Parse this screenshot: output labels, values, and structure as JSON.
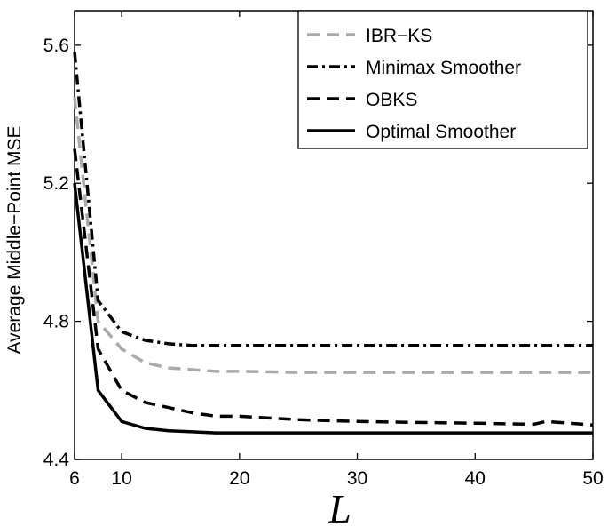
{
  "chart_data": {
    "type": "line",
    "xlabel": "L",
    "ylabel": "Average Middle−Point MSE",
    "xlim": [
      6,
      50
    ],
    "ylim": [
      4.4,
      5.7
    ],
    "xticks": [
      6,
      10,
      20,
      30,
      40,
      50
    ],
    "yticks": [
      4.4,
      4.8,
      5.2,
      5.6
    ],
    "xtick_labels": [
      "6",
      "10",
      "20",
      "30",
      "40",
      "50"
    ],
    "ytick_labels": [
      "4.4",
      "4.8",
      "5.2",
      "5.6"
    ],
    "grid": false,
    "legend_position": "top-right",
    "series": [
      {
        "name": "IBR−KS",
        "color": "#aaaaaa",
        "style": "dashed",
        "x": [
          6,
          8,
          10,
          12,
          14,
          16,
          18,
          20,
          25,
          30,
          35,
          40,
          45,
          50
        ],
        "y": [
          5.45,
          4.8,
          4.72,
          4.68,
          4.665,
          4.66,
          4.655,
          4.655,
          4.652,
          4.652,
          4.652,
          4.652,
          4.652,
          4.652
        ]
      },
      {
        "name": "Minimax Smoother",
        "color": "#000000",
        "style": "dashdot",
        "x": [
          6,
          8,
          10,
          12,
          14,
          16,
          18,
          20,
          25,
          30,
          35,
          40,
          45,
          50
        ],
        "y": [
          5.58,
          4.86,
          4.77,
          4.745,
          4.735,
          4.73,
          4.73,
          4.73,
          4.73,
          4.73,
          4.73,
          4.73,
          4.73,
          4.73
        ]
      },
      {
        "name": "OBKS",
        "color": "#000000",
        "style": "dashed",
        "x": [
          6,
          8,
          10,
          12,
          14,
          16,
          18,
          20,
          25,
          30,
          35,
          40,
          45,
          46,
          50
        ],
        "y": [
          5.3,
          4.72,
          4.6,
          4.565,
          4.55,
          4.535,
          4.525,
          4.525,
          4.515,
          4.51,
          4.507,
          4.505,
          4.502,
          4.51,
          4.5
        ]
      },
      {
        "name": "Optimal Smoother",
        "color": "#000000",
        "style": "solid",
        "x": [
          6,
          8,
          10,
          12,
          14,
          16,
          18,
          20,
          25,
          30,
          35,
          40,
          45,
          50
        ],
        "y": [
          5.2,
          4.6,
          4.51,
          4.49,
          4.483,
          4.48,
          4.477,
          4.477,
          4.477,
          4.477,
          4.477,
          4.477,
          4.477,
          4.477
        ]
      }
    ]
  }
}
